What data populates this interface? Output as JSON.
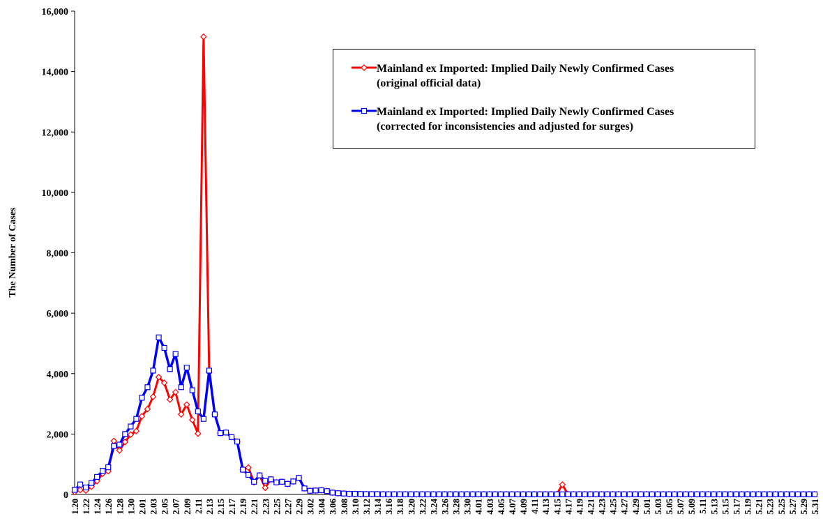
{
  "chart_data": {
    "type": "line",
    "y_label": "The Number of Cases",
    "categories": [
      "1.20",
      null,
      "1.22",
      null,
      "1.24",
      null,
      "1.26",
      null,
      "1.28",
      null,
      "1.30",
      null,
      "2.01",
      null,
      "2.03",
      null,
      "2.05",
      null,
      "2.07",
      null,
      "2.09",
      null,
      "2.11",
      null,
      "2.13",
      null,
      "2.15",
      null,
      "2.17",
      null,
      "2.19",
      null,
      "2.21",
      null,
      "2.23",
      null,
      "2.25",
      null,
      "2.27",
      null,
      "2.29",
      null,
      "3.02",
      null,
      "3.04",
      null,
      "3.06",
      null,
      "3.08",
      null,
      "3.10",
      null,
      "3.12",
      null,
      "3.14",
      null,
      "3.16",
      null,
      "3.18",
      null,
      "3.20",
      null,
      "3.22",
      null,
      "3.24",
      null,
      "3.26",
      null,
      "3.28",
      null,
      "3.30",
      null,
      "4.01",
      null,
      "4.03",
      null,
      "4.05",
      null,
      "4.07",
      null,
      "4.09",
      null,
      "4.11",
      null,
      "4.13",
      null,
      "4.15",
      null,
      "4.17",
      null,
      "4.19",
      null,
      "4.21",
      null,
      "4.23",
      null,
      "4.25",
      null,
      "4.27",
      null,
      "4.29",
      null,
      "5.01",
      null,
      "5.03",
      null,
      "5.05",
      null,
      "5.07",
      null,
      "5.09",
      null,
      "5.11",
      null,
      "5.13",
      null,
      "5.15",
      null,
      "5.17",
      null,
      "5.19",
      null,
      "5.21",
      null,
      "5.23",
      null,
      "5.25",
      null,
      "5.27",
      null,
      "5.29",
      null,
      "5.31"
    ],
    "series": [
      {
        "name": "Mainland ex Imported: Implied Daily Newly Confirmed Cases\n(original official data)",
        "color": "#ff0000",
        "marker": "diamond",
        "values": [
          77,
          149,
          131,
          259,
          444,
          688,
          769,
          1771,
          1459,
          1737,
          1981,
          2099,
          2589,
          2825,
          3235,
          3884,
          3694,
          3143,
          3385,
          2652,
          2973,
          2467,
          2015,
          15152,
          4050,
          2650,
          2030,
          2050,
          1900,
          1750,
          820,
          890,
          400,
          630,
          220,
          500,
          400,
          420,
          350,
          430,
          550,
          200,
          120,
          130,
          140,
          110,
          60,
          40,
          30,
          20,
          20,
          15,
          10,
          10,
          10,
          5,
          5,
          5,
          5,
          5,
          5,
          5,
          5,
          5,
          5,
          5,
          5,
          5,
          5,
          5,
          5,
          5,
          5,
          5,
          5,
          5,
          5,
          5,
          5,
          5,
          5,
          5,
          5,
          5,
          5,
          5,
          5,
          325,
          5,
          5,
          5,
          5,
          5,
          5,
          5,
          5,
          5,
          5,
          5,
          5,
          5,
          5,
          5,
          5,
          5,
          5,
          5,
          5,
          5,
          5,
          5,
          5,
          5,
          5,
          5,
          5,
          5,
          5,
          5,
          5,
          5,
          5,
          5,
          5,
          5,
          5,
          5,
          5,
          5,
          5,
          5,
          5,
          5
        ]
      },
      {
        "name": "Mainland ex Imported: Implied Daily Newly Confirmed Cases\n(corrected for inconsistencies and adjusted for surges)",
        "color": "#0000ff",
        "marker": "square",
        "values": [
          150,
          330,
          230,
          380,
          580,
          780,
          900,
          1600,
          1650,
          2000,
          2250,
          2500,
          3200,
          3550,
          4100,
          5200,
          4850,
          4150,
          4650,
          3550,
          4200,
          3450,
          2750,
          2500,
          4100,
          2650,
          2030,
          2050,
          1900,
          1750,
          820,
          650,
          420,
          630,
          450,
          500,
          400,
          420,
          350,
          430,
          550,
          200,
          120,
          130,
          140,
          110,
          60,
          40,
          30,
          20,
          20,
          15,
          10,
          10,
          10,
          5,
          5,
          5,
          5,
          5,
          5,
          5,
          5,
          5,
          5,
          5,
          5,
          5,
          5,
          5,
          5,
          5,
          5,
          5,
          5,
          5,
          5,
          5,
          5,
          5,
          5,
          5,
          5,
          5,
          5,
          5,
          5,
          5,
          5,
          5,
          5,
          5,
          5,
          5,
          5,
          5,
          5,
          5,
          5,
          5,
          5,
          5,
          5,
          5,
          5,
          5,
          5,
          5,
          5,
          5,
          5,
          5,
          5,
          5,
          5,
          5,
          5,
          5,
          5,
          5,
          5,
          5,
          5,
          5,
          5,
          5,
          5,
          5,
          5,
          5,
          5,
          5,
          5
        ]
      }
    ],
    "ylim": [
      0,
      16000
    ],
    "yticks": [
      0,
      {
        "value": 2000,
        "label": "2,000"
      },
      {
        "value": 4000,
        "label": "4,000"
      },
      {
        "value": 6000,
        "label": "6,000"
      },
      {
        "value": 8000,
        "label": "8,000"
      },
      {
        "value": 10000,
        "label": "10,000"
      },
      {
        "value": 12000,
        "label": "12,000"
      },
      {
        "value": 14000,
        "label": "14,000"
      },
      {
        "value": 16000,
        "label": "16,000"
      }
    ],
    "legend": "upper-right",
    "grid": false
  }
}
